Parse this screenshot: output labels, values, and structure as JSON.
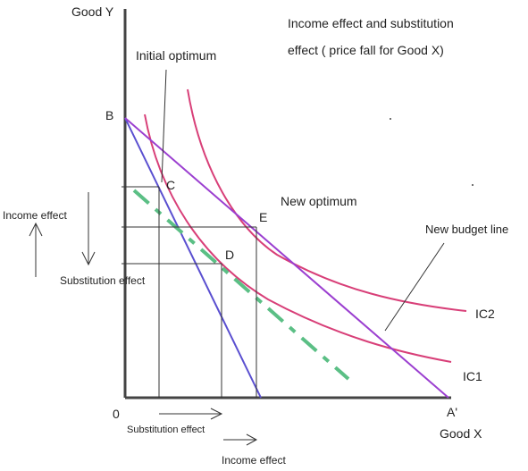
{
  "title_line1": "Income effect and substitution",
  "title_line2": "effect ( price fall for Good X)",
  "axis_y_label": "Good Y",
  "axis_x_label": "Good X",
  "origin_label": "0",
  "point_b": "B",
  "point_a_prime": "A'",
  "point_c": "C",
  "point_d": "D",
  "point_e": "E",
  "initial_optimum": "Initial optimum",
  "new_optimum": "New optimum",
  "new_budget_line": "New budget line",
  "ic1": "IC1",
  "ic2": "IC2",
  "income_effect_left": "Income effect",
  "substitution_effect_left": "Substitution effect",
  "substitution_effect_bottom": "Substitution effect",
  "income_effect_bottom": "Income effect",
  "colors": {
    "axis": "#444444",
    "ic_curves": "#d83f78",
    "new_budget_line": "#9b3fd0",
    "original_budget_line": "#5a4fd0",
    "compensated_line": "#5bbf85",
    "guides": "#333333"
  }
}
